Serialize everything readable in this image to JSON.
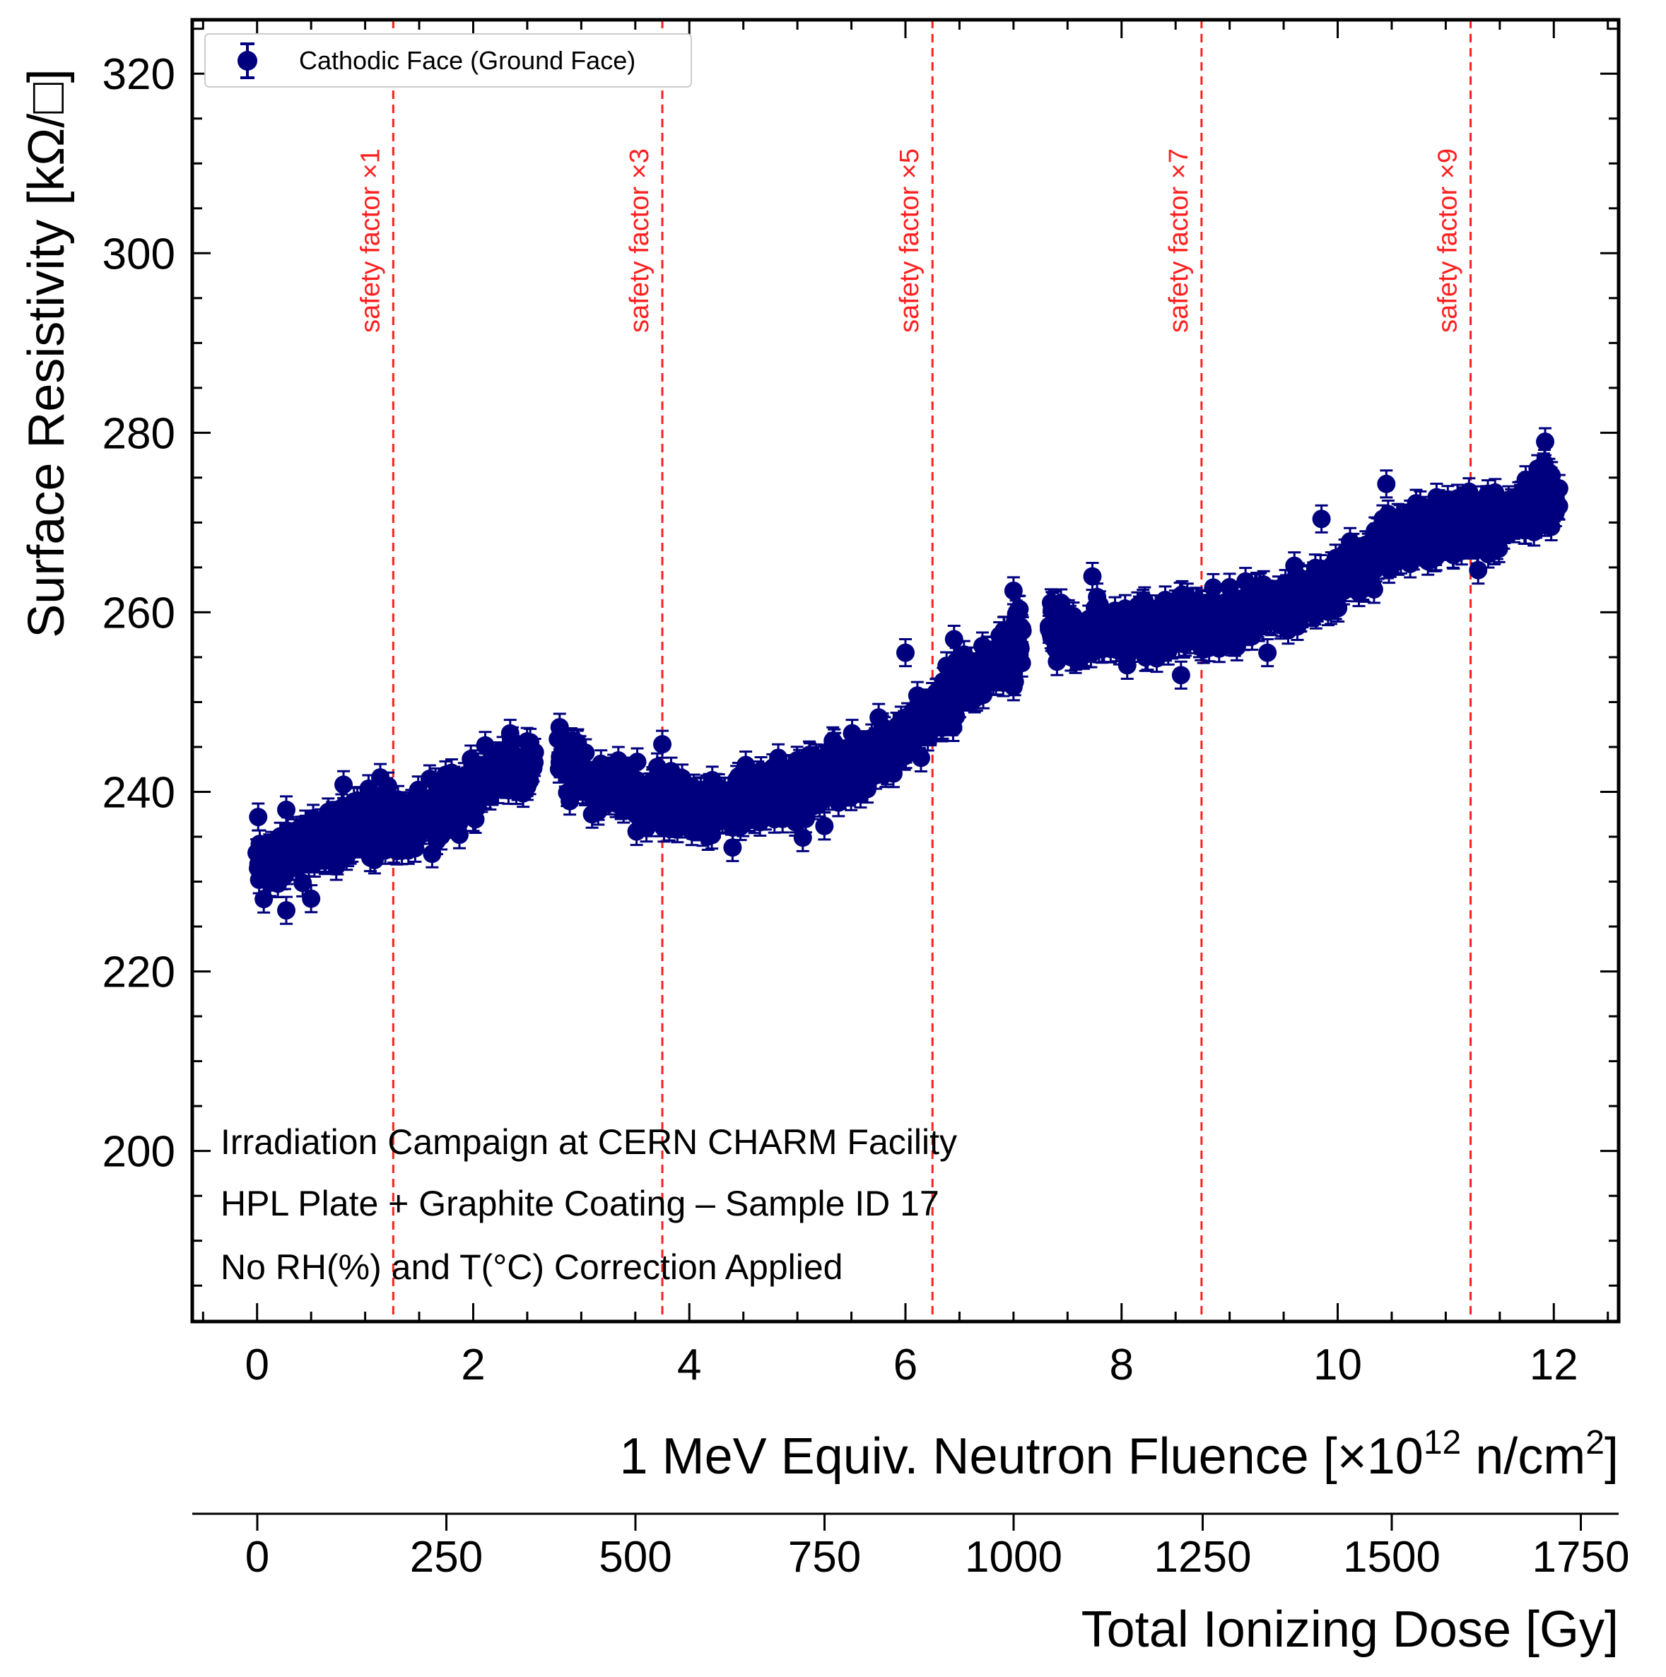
{
  "chart_data": {
    "type": "scatter",
    "title": "",
    "xlabel": "1 MeV Equiv. Neutron Fluence [×10^12 n/cm^2]",
    "xlabel_parts": {
      "pre": "1 MeV Equiv. Neutron Fluence [×10",
      "exp1": "12",
      "mid": " n/cm",
      "exp2": "2",
      "post": "]"
    },
    "ylabel": "Surface Resistivity [kΩ/□]",
    "secondary_xlabel": "Total Ionizing Dose [Gy]",
    "xlim": [
      -0.6,
      12.6
    ],
    "ylim": [
      181,
      326
    ],
    "secondary_xlim": [
      -86,
      1800
    ],
    "xticks": [
      0,
      2,
      4,
      6,
      8,
      10,
      12
    ],
    "yticks": [
      200,
      220,
      240,
      260,
      280,
      300,
      320
    ],
    "secondary_xticks": [
      0,
      250,
      500,
      750,
      1000,
      1250,
      1500,
      1750
    ],
    "legend": {
      "label": "Cathodic Face (Ground Face)",
      "position": "top-left",
      "color": "#00007f"
    },
    "marker_color": "#00007f",
    "error_bar": 1.5,
    "vlines": [
      {
        "x": 1.26,
        "label": "safety factor ×1",
        "color": "#ff2020"
      },
      {
        "x": 3.75,
        "label": "safety factor ×3",
        "color": "#ff2020"
      },
      {
        "x": 6.25,
        "label": "safety factor ×5",
        "color": "#ff2020"
      },
      {
        "x": 8.74,
        "label": "safety factor ×7",
        "color": "#ff2020"
      },
      {
        "x": 11.23,
        "label": "safety factor ×9",
        "color": "#ff2020"
      }
    ],
    "annotations": [
      "Irradiation Campaign at CERN CHARM Facility",
      "HPL Plate + Graphite Coating – Sample ID 17",
      "No RH(%) and T(°C) Correction Applied"
    ],
    "series": [
      {
        "name": "Cathodic Face (Ground Face)",
        "trend_x": [
          0.0,
          0.5,
          1.0,
          1.5,
          2.0,
          2.55,
          2.8,
          3.2,
          3.8,
          4.3,
          4.8,
          5.3,
          5.8,
          6.3,
          6.7,
          7.05,
          7.35,
          8.0,
          8.5,
          9.0,
          9.5,
          10.0,
          10.5,
          11.0,
          11.5,
          12.05
        ],
        "trend_y": [
          232,
          234,
          236,
          237,
          240,
          244,
          244,
          240,
          239,
          238,
          240,
          242,
          244,
          249,
          253,
          257,
          258,
          257,
          259,
          259,
          261,
          263,
          268,
          270,
          270,
          273
        ],
        "gaps": [
          [
            2.58,
            2.78
          ],
          [
            7.08,
            7.33
          ]
        ],
        "outliers": [
          {
            "x": 0.27,
            "y": 226.8
          },
          {
            "x": 0.01,
            "y": 237.2
          },
          {
            "x": 0.27,
            "y": 238.0
          },
          {
            "x": 0.5,
            "y": 228.1
          },
          {
            "x": 0.8,
            "y": 240.8
          },
          {
            "x": 1.14,
            "y": 241.6
          },
          {
            "x": 1.62,
            "y": 233.1
          },
          {
            "x": 2.5,
            "y": 240.6
          },
          {
            "x": 2.8,
            "y": 247.2
          },
          {
            "x": 3.1,
            "y": 237.5
          },
          {
            "x": 3.75,
            "y": 245.3
          },
          {
            "x": 4.4,
            "y": 233.8
          },
          {
            "x": 5.05,
            "y": 234.9
          },
          {
            "x": 5.25,
            "y": 236.2
          },
          {
            "x": 6.0,
            "y": 255.5
          },
          {
            "x": 6.45,
            "y": 257.0
          },
          {
            "x": 7.0,
            "y": 262.4
          },
          {
            "x": 7.0,
            "y": 251.7
          },
          {
            "x": 7.73,
            "y": 264.0
          },
          {
            "x": 8.55,
            "y": 253.0
          },
          {
            "x": 9.85,
            "y": 270.4
          },
          {
            "x": 10.45,
            "y": 274.3
          },
          {
            "x": 11.3,
            "y": 264.7
          },
          {
            "x": 11.92,
            "y": 279.0
          },
          {
            "x": 11.85,
            "y": 276.0
          },
          {
            "x": 9.35,
            "y": 255.5
          }
        ]
      }
    ]
  }
}
